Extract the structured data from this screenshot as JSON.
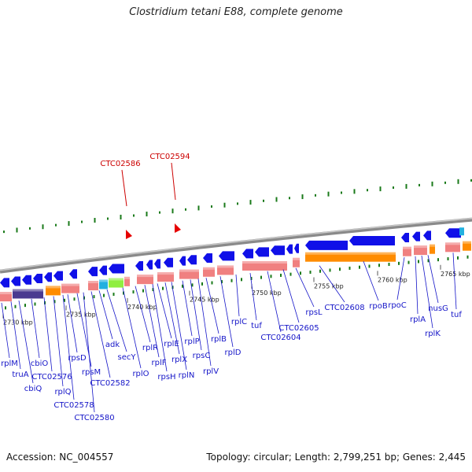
{
  "title": "Clostridium tetani E88, complete genome",
  "footer": {
    "accession": "Accession: NC_004557",
    "topology": "Topology: circular; Length: 2,799,251 bp; Genes: 2,445"
  },
  "colors": {
    "gene_blue": "#1010e8",
    "rna_red": "#e60000",
    "label_blue": "#1515c8",
    "label_red": "#cc0000",
    "tick_green": "#1a7a1a",
    "cds_pink": "#f08080",
    "cds_orange": "#ff8c00",
    "backbone_gray": "#8a8a8a"
  },
  "scale_ticks": [
    "2730 kbp",
    "2735 kbp",
    "2740 kbp",
    "2745 kbp",
    "2750 kbp",
    "2755 kbp",
    "2760 kbp",
    "2765 kbp"
  ],
  "feature_labels_red": [
    "CTC02586",
    "CTC02594"
  ],
  "gene_labels": [
    "rplM",
    "truA",
    "cbiQ",
    "cbiO",
    "CTC02576",
    "rplQ",
    "CTC02578",
    "rpsD",
    "rpsM",
    "CTC02580",
    "CTC02582",
    "adk",
    "secY",
    "rplO",
    "rplR",
    "rplF",
    "rpsH",
    "rplE",
    "rplX",
    "rplN",
    "rplP",
    "rpsC",
    "rplV",
    "rplB",
    "rplD",
    "rplC",
    "tuf",
    "CTC02604",
    "CTC02605",
    "rpsL",
    "CTC02608",
    "rpoB",
    "rpoC",
    "rplA",
    "rplK",
    "nusG",
    "tuf"
  ]
}
